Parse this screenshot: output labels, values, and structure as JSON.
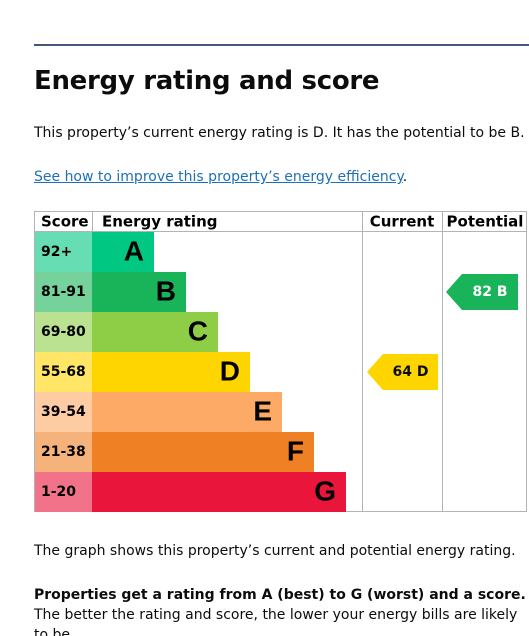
{
  "title": "Energy rating and score",
  "intro": "This property’s current energy rating is D. It has the potential to be B.",
  "link": "See how to improve this property’s energy efficiency",
  "link_suffix": ".",
  "table": {
    "headers": [
      "Score",
      "Energy rating",
      "Current",
      "Potential"
    ],
    "bands": [
      {
        "score": "92+",
        "letter": "A",
        "color": "#00c781"
      },
      {
        "score": "81-91",
        "letter": "B",
        "color": "#19b459"
      },
      {
        "score": "69-80",
        "letter": "C",
        "color": "#8dce46"
      },
      {
        "score": "55-68",
        "letter": "D",
        "color": "#ffd500"
      },
      {
        "score": "39-54",
        "letter": "E",
        "color": "#fcaa65"
      },
      {
        "score": "21-38",
        "letter": "F",
        "color": "#ef8023"
      },
      {
        "score": "1-20",
        "letter": "G",
        "color": "#e9153b"
      }
    ],
    "current": {
      "score": 64,
      "letter": "D"
    },
    "potential": {
      "score": 82,
      "letter": "B"
    }
  },
  "caption": "The graph shows this property’s current and potential energy rating.",
  "note_bold": "Properties get a rating from A (best) to G (worst) and a score.",
  "note": " The better the rating and score, the lower your energy bills are likely to be."
}
